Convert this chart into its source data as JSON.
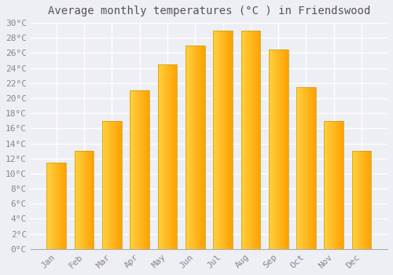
{
  "title": "Average monthly temperatures (°C ) in Friendswood",
  "months": [
    "Jan",
    "Feb",
    "Mar",
    "Apr",
    "May",
    "Jun",
    "Jul",
    "Aug",
    "Sep",
    "Oct",
    "Nov",
    "Dec"
  ],
  "values": [
    11.5,
    13.0,
    17.0,
    21.0,
    24.5,
    27.0,
    29.0,
    29.0,
    26.5,
    21.5,
    17.0,
    13.0
  ],
  "bar_color_left": "#FFD040",
  "bar_color_right": "#FFA000",
  "bar_edge_color": "#C8A000",
  "ylim": [
    0,
    30
  ],
  "ytick_step": 2,
  "background_color": "#eeeef5",
  "plot_bg_color": "#eeeef5",
  "grid_color": "#ffffff",
  "title_fontsize": 10,
  "tick_fontsize": 8,
  "tick_label_color": "#888888",
  "title_color": "#555555",
  "bar_width": 0.7
}
